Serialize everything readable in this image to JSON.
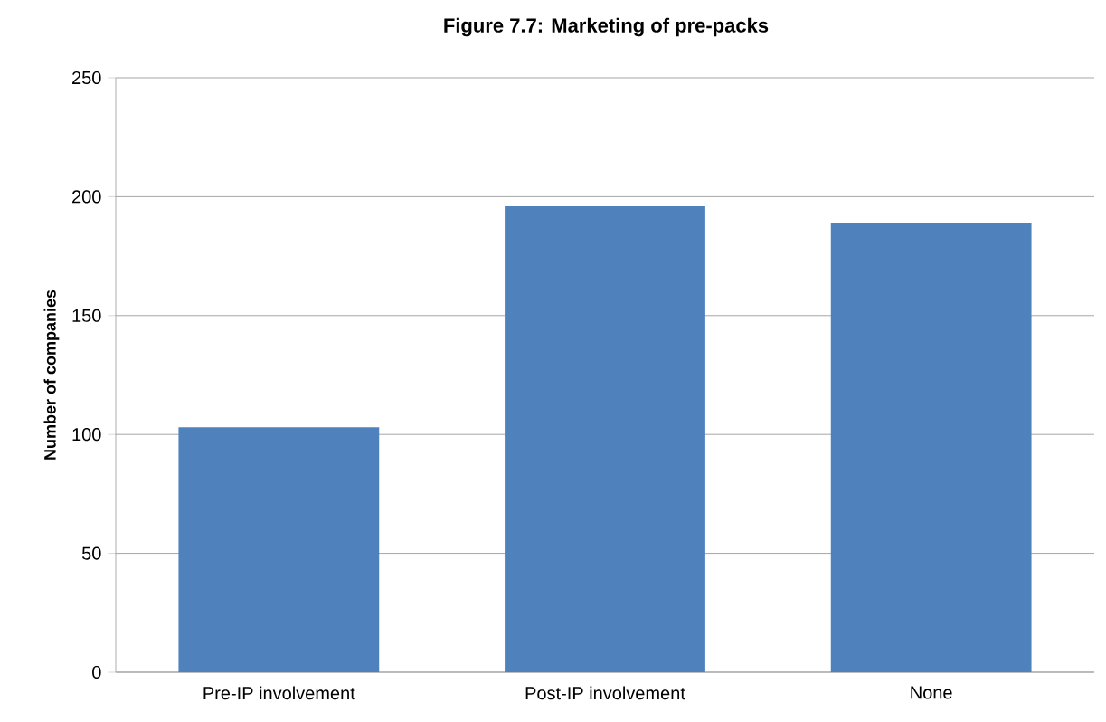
{
  "chart_data": {
    "type": "bar",
    "title": "Figure 7.7: Marketing of pre-packs",
    "ylabel": "Number of companies",
    "categories": [
      "Pre-IP involvement",
      "Post-IP involvement",
      "None"
    ],
    "values": [
      103,
      196,
      189
    ],
    "color": "#4f81bd",
    "ylim": [
      0,
      250
    ],
    "yticks": [
      0,
      50,
      100,
      150,
      200,
      250
    ],
    "grid": "y"
  }
}
